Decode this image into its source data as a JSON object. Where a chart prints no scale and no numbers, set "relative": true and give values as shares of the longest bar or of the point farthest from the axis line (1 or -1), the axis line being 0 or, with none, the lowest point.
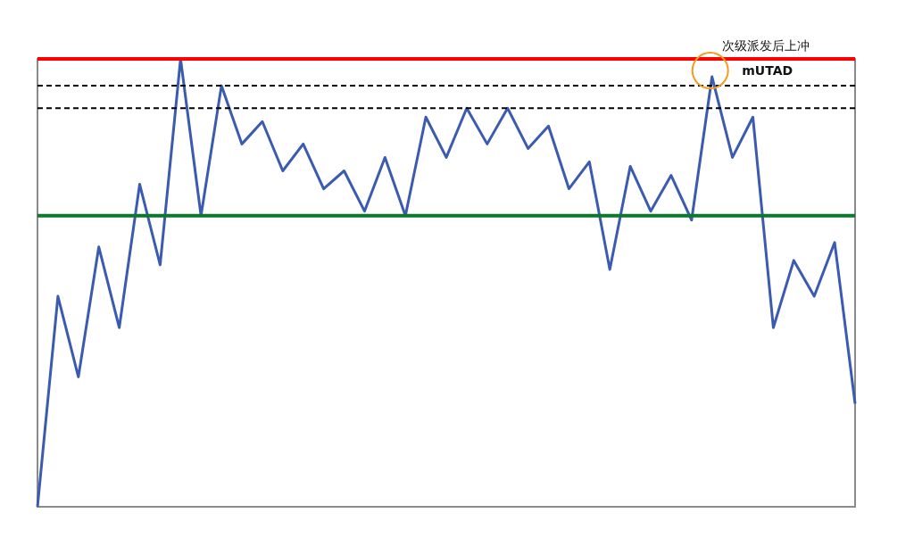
{
  "chart_data": {
    "type": "line",
    "relative": true,
    "tick_labels": false,
    "categories": [
      null,
      null,
      null,
      null,
      null,
      null,
      null,
      null,
      null,
      null,
      null,
      null,
      null,
      null,
      null,
      null,
      null,
      null,
      null,
      null,
      null,
      null,
      null,
      null,
      null,
      null,
      null,
      null,
      null,
      null,
      null,
      null,
      null,
      null,
      null,
      null,
      null,
      null,
      null,
      null,
      null
    ],
    "series": [
      {
        "color": "#3a5bb0",
        "values": [
          0,
          0.47,
          0.29,
          0.58,
          0.4,
          0.72,
          0.54,
          1,
          0.65,
          0.94,
          0.81,
          0.86,
          0.75,
          0.81,
          0.71,
          0.75,
          0.66,
          0.78,
          0.65,
          0.87,
          0.78,
          0.89,
          0.81,
          0.89,
          0.8,
          0.85,
          0.71,
          0.77,
          0.53,
          0.76,
          0.66,
          0.74,
          0.64,
          0.96,
          0.78,
          0.87,
          0.4,
          0.55,
          0.47,
          0.59,
          0.23
        ]
      }
    ],
    "ref_lines": [
      {
        "axis": "y",
        "value": 1,
        "color": "#ff0000",
        "line_style": "solid"
      },
      {
        "axis": "y",
        "value": 0.65,
        "color": "#0a7a2a",
        "line_style": "solid"
      },
      {
        "axis": "y",
        "value": 0.94,
        "color": "#000000",
        "line_style": "dashed"
      },
      {
        "axis": "y",
        "value": 0.89,
        "color": "#000000",
        "line_style": "dashed"
      }
    ],
    "annotations": [
      "次级派发后上冲",
      "mUTAD"
    ]
  }
}
